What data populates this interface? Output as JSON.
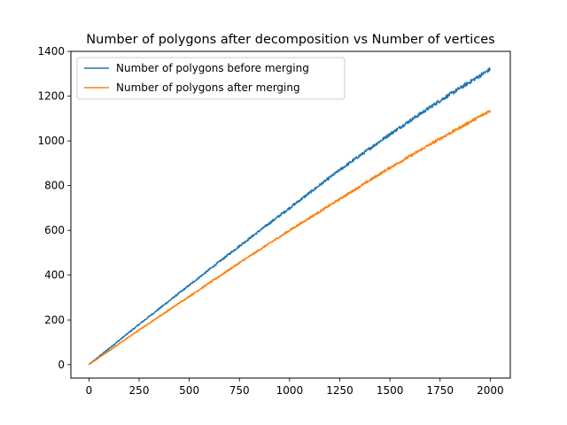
{
  "chart_data": {
    "type": "line",
    "title": "Number of polygons after decomposition vs Number of vertices",
    "xlabel": "",
    "ylabel": "",
    "xlim": [
      -90,
      2100
    ],
    "ylim": [
      -60,
      1400
    ],
    "xticks": [
      0,
      250,
      500,
      750,
      1000,
      1250,
      1500,
      1750,
      2000
    ],
    "yticks": [
      0,
      200,
      400,
      600,
      800,
      1000,
      1200,
      1400
    ],
    "grid": false,
    "legend_position": "top-left",
    "series": [
      {
        "name": "Number of polygons before merging",
        "color": "#1f77b4",
        "noise": 9,
        "x": [
          0,
          250,
          500,
          750,
          1000,
          1250,
          1500,
          1750,
          2000
        ],
        "y": [
          0,
          180,
          355,
          530,
          700,
          870,
          1030,
          1180,
          1320
        ]
      },
      {
        "name": "Number of polygons after merging",
        "color": "#ff7f0e",
        "noise": 7,
        "x": [
          0,
          250,
          500,
          750,
          1000,
          1250,
          1500,
          1750,
          2000
        ],
        "y": [
          0,
          155,
          305,
          455,
          600,
          740,
          880,
          1010,
          1135
        ]
      }
    ]
  }
}
